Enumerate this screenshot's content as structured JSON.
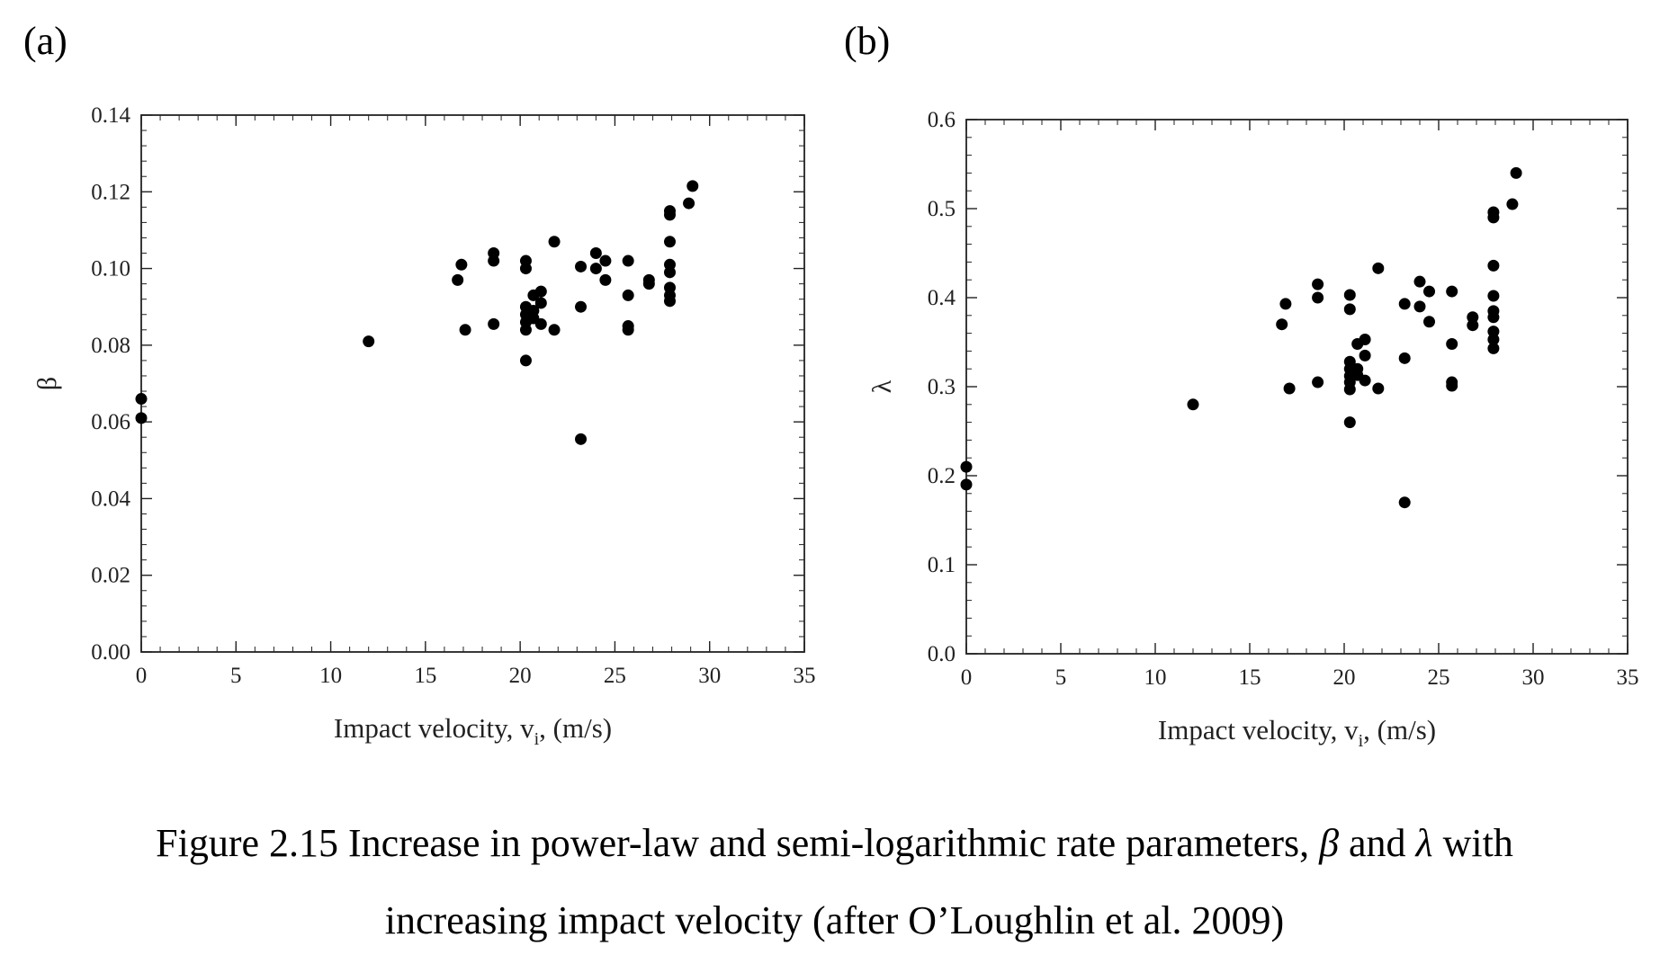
{
  "panels": {
    "a_label": "(a)",
    "b_label": "(b)"
  },
  "caption": {
    "part1": "Figure 2.15 Increase in power-law and semi-logarithmic rate parameters,",
    "sym_beta": "β",
    "and": "and",
    "sym_lambda": "λ",
    "part2": "with",
    "line2": "increasing impact velocity (after O’Loughlin et al. 2009)"
  },
  "chart_data": [
    {
      "type": "scatter",
      "panel": "(a)",
      "xlabel": "Impact velocity, v",
      "xlabel_sub": "i",
      "xlabel_suffix": ", (m/s)",
      "ylabel": "β",
      "xlim": [
        0,
        35
      ],
      "ylim": [
        0,
        0.14
      ],
      "xticks": [
        "0",
        "5",
        "10",
        "15",
        "20",
        "25",
        "30",
        "35"
      ],
      "yticks": [
        "0.00",
        "0.02",
        "0.04",
        "0.06",
        "0.08",
        "0.10",
        "0.12",
        "0.14"
      ],
      "points": [
        [
          0,
          0.066
        ],
        [
          0,
          0.061
        ],
        [
          12.0,
          0.081
        ],
        [
          16.7,
          0.097
        ],
        [
          16.9,
          0.101
        ],
        [
          17.1,
          0.084
        ],
        [
          18.6,
          0.104
        ],
        [
          18.6,
          0.102
        ],
        [
          18.6,
          0.0855
        ],
        [
          20.3,
          0.102
        ],
        [
          20.3,
          0.1
        ],
        [
          20.3,
          0.09
        ],
        [
          20.3,
          0.088
        ],
        [
          20.3,
          0.086
        ],
        [
          20.3,
          0.084
        ],
        [
          20.3,
          0.076
        ],
        [
          20.7,
          0.093
        ],
        [
          20.7,
          0.089
        ],
        [
          20.7,
          0.087
        ],
        [
          21.1,
          0.094
        ],
        [
          21.1,
          0.091
        ],
        [
          21.1,
          0.0855
        ],
        [
          21.8,
          0.107
        ],
        [
          21.8,
          0.084
        ],
        [
          23.2,
          0.1005
        ],
        [
          23.2,
          0.09
        ],
        [
          23.2,
          0.0555
        ],
        [
          24.0,
          0.104
        ],
        [
          24.0,
          0.1
        ],
        [
          24.5,
          0.102
        ],
        [
          24.5,
          0.097
        ],
        [
          25.7,
          0.102
        ],
        [
          25.7,
          0.093
        ],
        [
          25.7,
          0.085
        ],
        [
          25.7,
          0.084
        ],
        [
          26.8,
          0.097
        ],
        [
          26.8,
          0.096
        ],
        [
          27.9,
          0.115
        ],
        [
          27.9,
          0.114
        ],
        [
          27.9,
          0.107
        ],
        [
          27.9,
          0.101
        ],
        [
          27.9,
          0.099
        ],
        [
          27.9,
          0.095
        ],
        [
          27.9,
          0.093
        ],
        [
          27.9,
          0.0915
        ],
        [
          28.9,
          0.117
        ],
        [
          29.1,
          0.1215
        ]
      ]
    },
    {
      "type": "scatter",
      "panel": "(b)",
      "xlabel": "Impact velocity, v",
      "xlabel_sub": "i",
      "xlabel_suffix": ", (m/s)",
      "ylabel": "λ",
      "xlim": [
        0,
        35
      ],
      "ylim": [
        0,
        0.6
      ],
      "xticks": [
        "0",
        "5",
        "10",
        "15",
        "20",
        "25",
        "30",
        "35"
      ],
      "yticks": [
        "0.0",
        "0.1",
        "0.2",
        "0.3",
        "0.4",
        "0.5",
        "0.6"
      ],
      "points": [
        [
          0,
          0.21
        ],
        [
          0,
          0.19
        ],
        [
          12.0,
          0.28
        ],
        [
          16.7,
          0.37
        ],
        [
          16.9,
          0.393
        ],
        [
          17.1,
          0.298
        ],
        [
          18.6,
          0.415
        ],
        [
          18.6,
          0.4
        ],
        [
          18.6,
          0.305
        ],
        [
          20.3,
          0.403
        ],
        [
          20.3,
          0.387
        ],
        [
          20.3,
          0.328
        ],
        [
          20.3,
          0.32
        ],
        [
          20.3,
          0.312
        ],
        [
          20.3,
          0.305
        ],
        [
          20.3,
          0.297
        ],
        [
          20.3,
          0.26
        ],
        [
          20.7,
          0.348
        ],
        [
          20.7,
          0.32
        ],
        [
          20.7,
          0.313
        ],
        [
          21.1,
          0.353
        ],
        [
          21.1,
          0.335
        ],
        [
          21.1,
          0.307
        ],
        [
          21.8,
          0.433
        ],
        [
          21.8,
          0.298
        ],
        [
          23.2,
          0.393
        ],
        [
          23.2,
          0.332
        ],
        [
          23.2,
          0.17
        ],
        [
          24.0,
          0.418
        ],
        [
          24.0,
          0.39
        ],
        [
          24.5,
          0.407
        ],
        [
          24.5,
          0.373
        ],
        [
          25.7,
          0.407
        ],
        [
          25.7,
          0.348
        ],
        [
          25.7,
          0.305
        ],
        [
          25.7,
          0.301
        ],
        [
          26.8,
          0.378
        ],
        [
          26.8,
          0.369
        ],
        [
          27.9,
          0.496
        ],
        [
          27.9,
          0.49
        ],
        [
          27.9,
          0.436
        ],
        [
          27.9,
          0.402
        ],
        [
          27.9,
          0.385
        ],
        [
          27.9,
          0.378
        ],
        [
          27.9,
          0.362
        ],
        [
          27.9,
          0.353
        ],
        [
          27.9,
          0.343
        ],
        [
          28.9,
          0.505
        ],
        [
          29.1,
          0.54
        ]
      ]
    }
  ]
}
